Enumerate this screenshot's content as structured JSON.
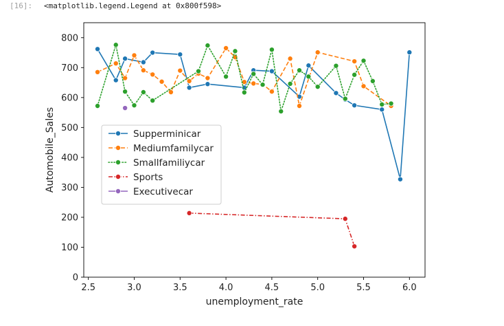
{
  "cell": {
    "prompt": "[16]:",
    "output": "<matplotlib.legend.Legend at 0x800f598>"
  },
  "chart_data": {
    "type": "line",
    "title": "",
    "xlabel": "unemployment_rate",
    "ylabel": "Automobile_Sales",
    "xlim": [
      2.45,
      6.17
    ],
    "ylim": [
      0,
      850
    ],
    "xticks": [
      2.5,
      3.0,
      3.5,
      4.0,
      4.5,
      5.0,
      5.5,
      6.0
    ],
    "xtick_labels": [
      "2.5",
      "3.0",
      "3.5",
      "4.0",
      "4.5",
      "5.0",
      "5.5",
      "6.0"
    ],
    "yticks": [
      0,
      100,
      200,
      300,
      400,
      500,
      600,
      700,
      800
    ],
    "ytick_labels": [
      "0",
      "100",
      "200",
      "300",
      "400",
      "500",
      "600",
      "700",
      "800"
    ],
    "grid": false,
    "legend_position": "center-left",
    "series": [
      {
        "name": "Supperminicar",
        "color": "#1f77b4",
        "linestyle": "solid",
        "x": [
          2.6,
          2.8,
          2.9,
          3.1,
          3.2,
          3.5,
          3.6,
          3.8,
          4.2,
          4.3,
          4.5,
          4.8,
          4.9,
          5.2,
          5.3,
          5.4,
          5.7,
          5.9,
          6.0
        ],
        "y": [
          762,
          658,
          730,
          718,
          750,
          744,
          633,
          645,
          633,
          691,
          688,
          603,
          707,
          615,
          593,
          574,
          560,
          327,
          751
        ]
      },
      {
        "name": "Mediumfamilycar",
        "color": "#ff7f0e",
        "linestyle": "dashed",
        "x": [
          2.6,
          2.8,
          2.9,
          3.0,
          3.1,
          3.2,
          3.3,
          3.4,
          3.5,
          3.6,
          3.7,
          3.8,
          4.0,
          4.1,
          4.2,
          4.3,
          4.4,
          4.5,
          4.7,
          4.8,
          5.0,
          5.4,
          5.5,
          5.8
        ],
        "y": [
          685,
          714,
          665,
          741,
          691,
          677,
          653,
          618,
          690,
          655,
          680,
          665,
          765,
          735,
          652,
          647,
          644,
          620,
          730,
          572,
          751,
          721,
          638,
          572
        ]
      },
      {
        "name": "Smallfamiliycar",
        "color": "#2ca02c",
        "linestyle": "dotted",
        "x": [
          2.6,
          2.8,
          2.9,
          3.0,
          3.1,
          3.2,
          3.7,
          3.8,
          4.0,
          4.1,
          4.2,
          4.3,
          4.4,
          4.5,
          4.6,
          4.7,
          4.8,
          4.9,
          5.0,
          5.2,
          5.3,
          5.4,
          5.5,
          5.6,
          5.7,
          5.8
        ],
        "y": [
          572,
          776,
          620,
          574,
          618,
          590,
          688,
          774,
          670,
          755,
          617,
          679,
          643,
          760,
          554,
          646,
          691,
          670,
          636,
          706,
          596,
          676,
          723,
          655,
          577,
          580
        ]
      },
      {
        "name": "Sports",
        "color": "#d62728",
        "linestyle": "dashdot",
        "x": [
          3.6,
          5.3,
          5.4
        ],
        "y": [
          214,
          195,
          103
        ]
      },
      {
        "name": "Executivecar",
        "color": "#9467bd",
        "linestyle": "solid",
        "x": [
          2.9
        ],
        "y": [
          565
        ]
      }
    ]
  }
}
